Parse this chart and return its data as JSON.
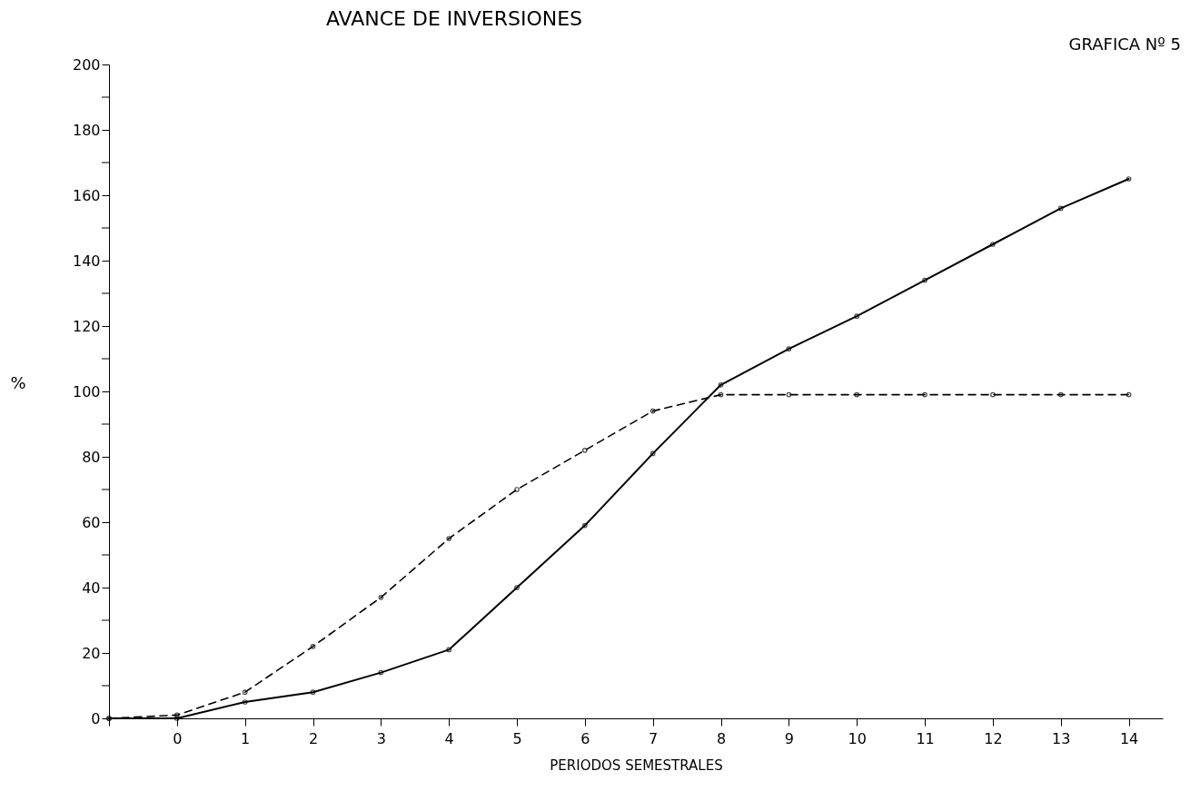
{
  "chart_data": {
    "type": "line",
    "title": "AVANCE DE INVERSIONES",
    "annotations": [
      "GRAFICA Nº 5"
    ],
    "xlabel": "PERIODOS  SEMESTRALES",
    "ylabel": "%",
    "x": [
      -1,
      0,
      1,
      2,
      3,
      4,
      5,
      6,
      7,
      8,
      9,
      10,
      11,
      12,
      13,
      14
    ],
    "series": [
      {
        "color": "#000000",
        "line_style": "solid",
        "values": [
          0,
          0,
          5,
          8,
          14,
          21,
          40,
          59,
          81,
          102,
          113,
          123,
          134,
          145,
          156,
          165
        ]
      },
      {
        "color": "#000000",
        "line_style": "dashed",
        "values": [
          0,
          1,
          8,
          22,
          37,
          55,
          70,
          82,
          94,
          99,
          99,
          99,
          99,
          99,
          99,
          99
        ]
      }
    ],
    "xlim": [
      -1,
      14.5
    ],
    "ylim": [
      0,
      200
    ],
    "xticks": [
      {
        "value": -1,
        "label": null
      },
      0,
      1,
      2,
      3,
      4,
      5,
      6,
      7,
      8,
      9,
      10,
      11,
      12,
      13,
      14
    ],
    "yticks": [
      0,
      {
        "value": 10,
        "label": null
      },
      20,
      {
        "value": 30,
        "label": null
      },
      40,
      {
        "value": 50,
        "label": null
      },
      60,
      {
        "value": 70,
        "label": null
      },
      80,
      {
        "value": 90,
        "label": null
      },
      100,
      {
        "value": 110,
        "label": null
      },
      120,
      {
        "value": 130,
        "label": null
      },
      140,
      {
        "value": 150,
        "label": null
      },
      160,
      {
        "value": 170,
        "label": null
      },
      180,
      {
        "value": 190,
        "label": null
      },
      200
    ],
    "marker": "circle",
    "grid": false
  }
}
